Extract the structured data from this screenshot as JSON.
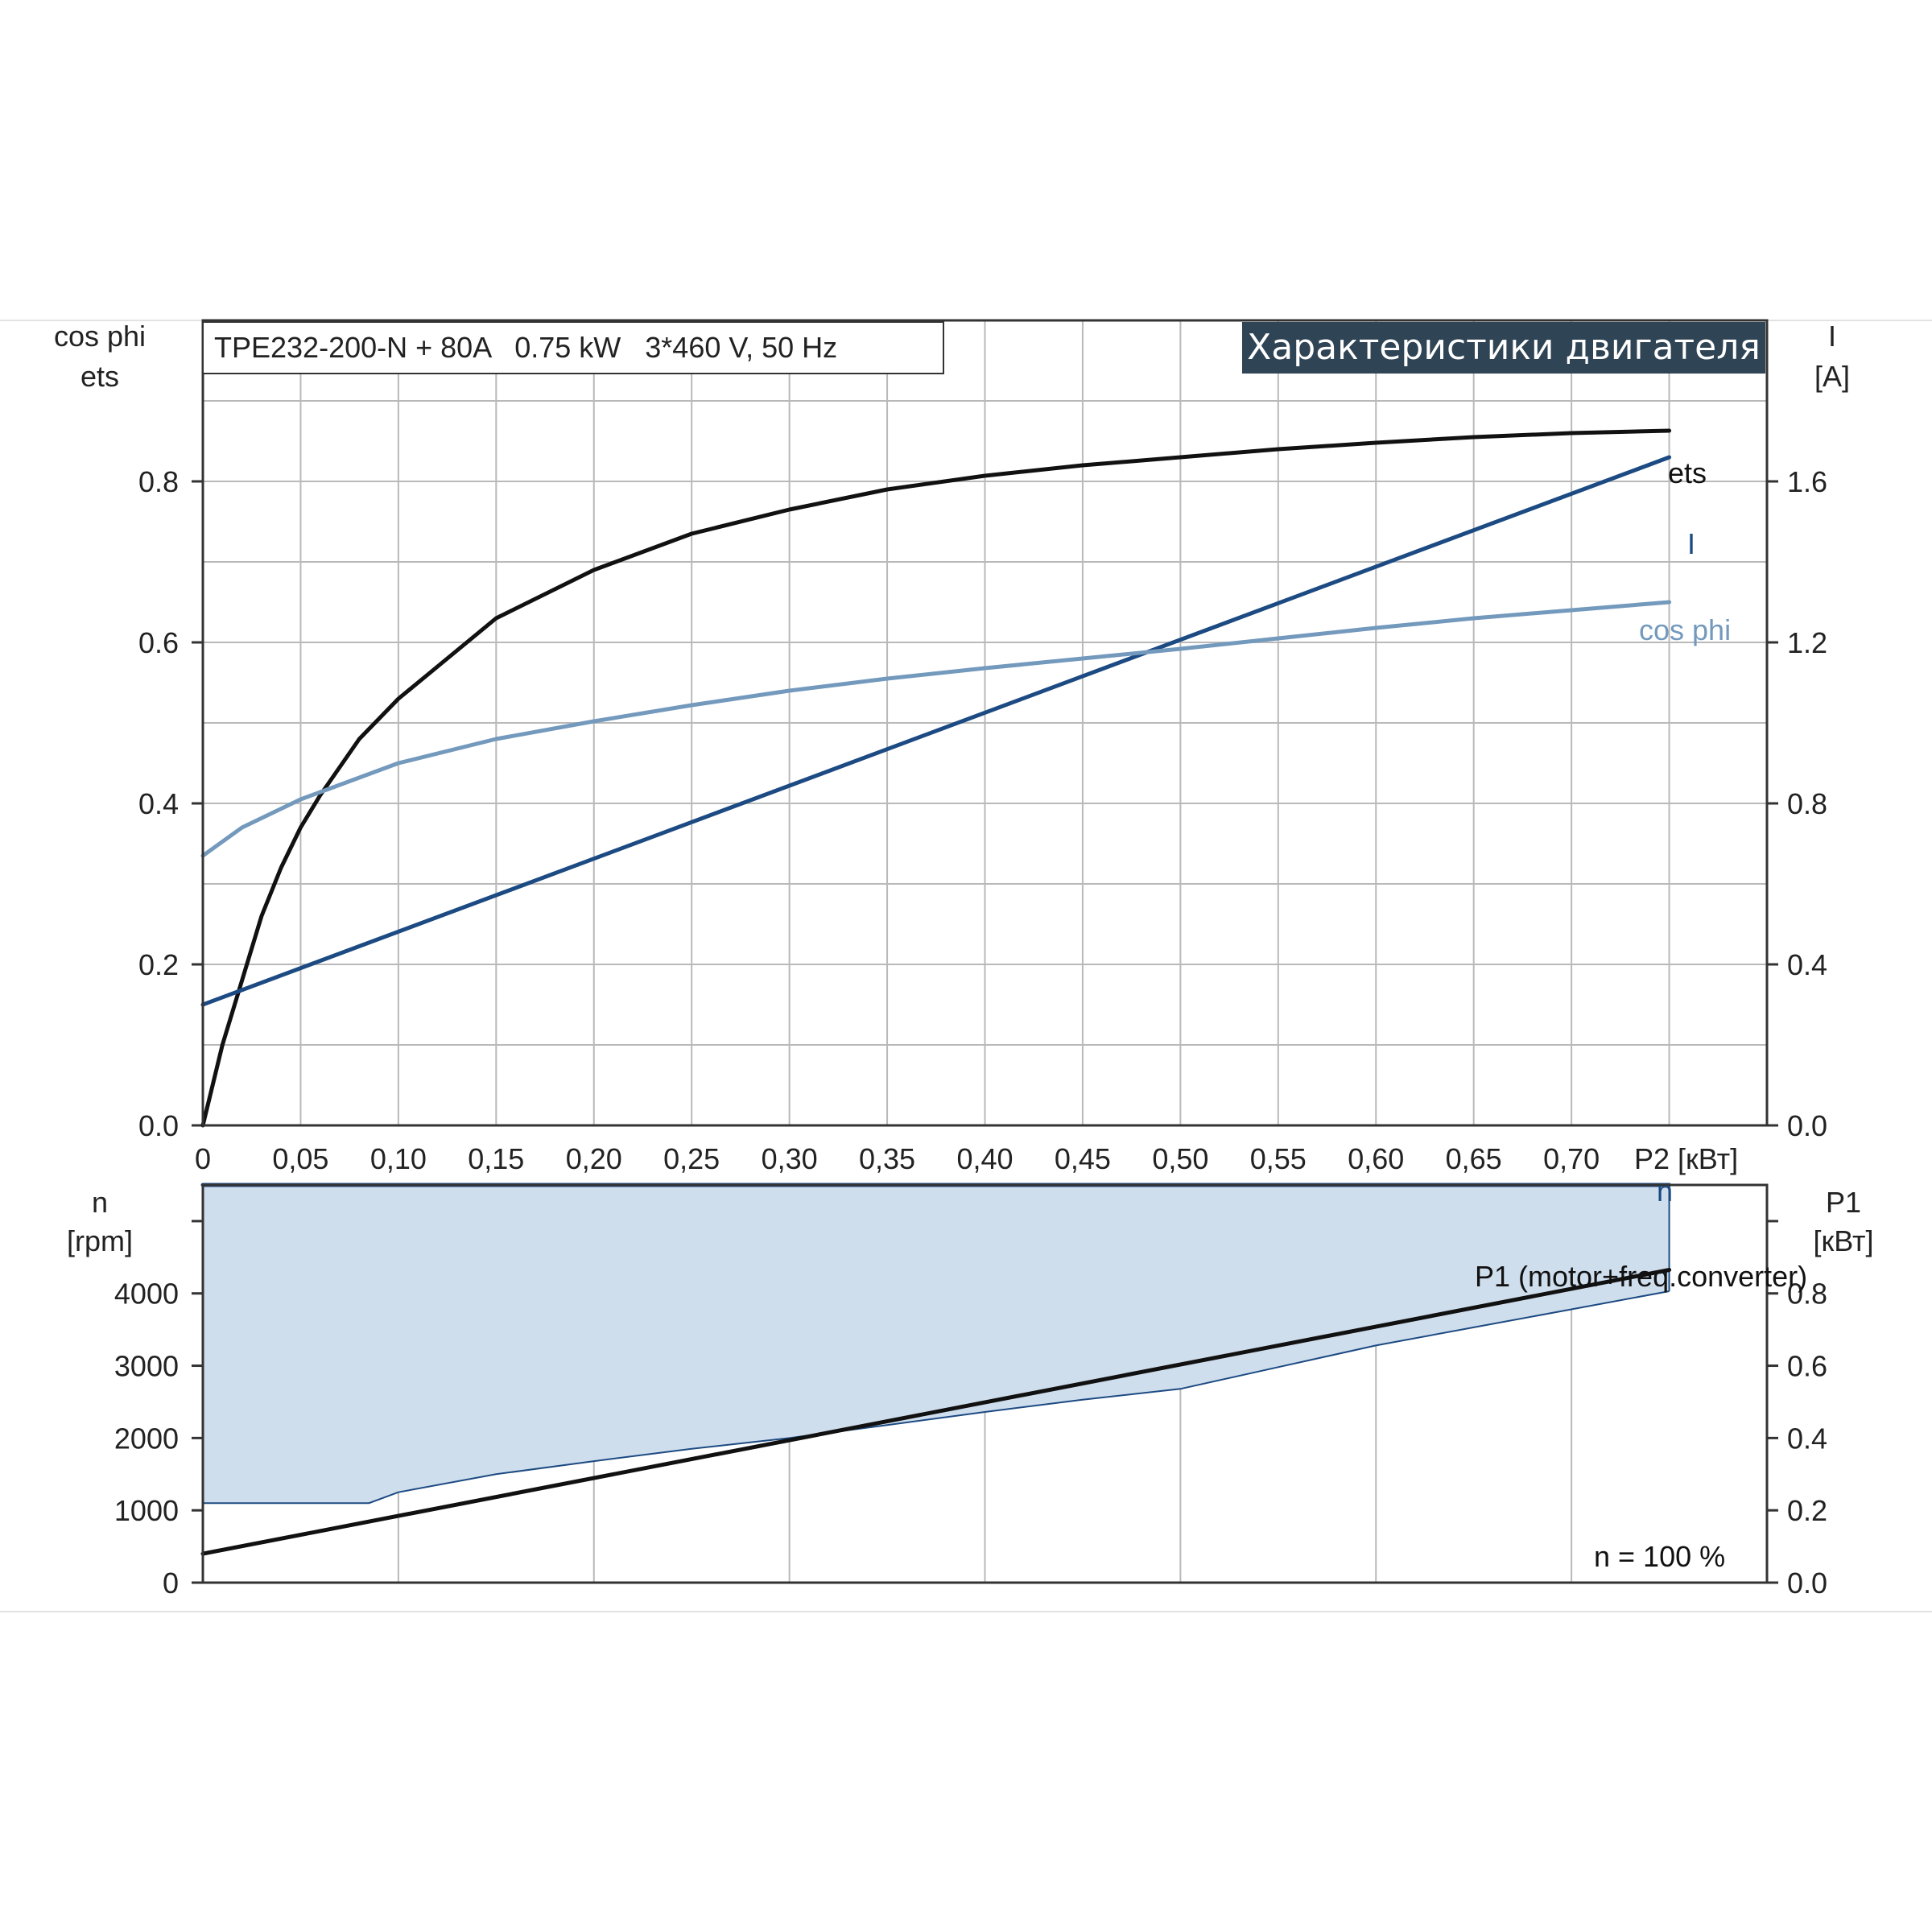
{
  "chart_data": [
    {
      "type": "line",
      "panel": "upper",
      "title": "TPE232-200-N + 80A   0.75 kW   3*460 V, 50 Hz",
      "badge": "Характеристики двигателя",
      "xlabel": "P2 [кВт]",
      "x_ticks": [
        "0",
        "0,05",
        "0,10",
        "0,15",
        "0,20",
        "0,25",
        "0,30",
        "0,35",
        "0,40",
        "0,45",
        "0,50",
        "0,55",
        "0,60",
        "0,65",
        "0,70"
      ],
      "xlim": [
        0,
        0.8
      ],
      "ylabel_left": [
        "cos phi",
        "ets"
      ],
      "ylim_left": [
        0,
        1.0
      ],
      "y_ticks_left": [
        "0.0",
        "0.2",
        "0.4",
        "0.6",
        "0.8"
      ],
      "ylabel_right": [
        "I",
        "[A]"
      ],
      "ylim_right": [
        0,
        2.0
      ],
      "y_ticks_right": [
        "0.0",
        "0.4",
        "0.8",
        "1.2",
        "1.6"
      ],
      "grid": true,
      "series": [
        {
          "name": "ets",
          "axis": "left",
          "color": "#111111",
          "x": [
            0,
            0.01,
            0.02,
            0.03,
            0.04,
            0.05,
            0.06,
            0.08,
            0.1,
            0.12,
            0.15,
            0.2,
            0.25,
            0.3,
            0.35,
            0.4,
            0.45,
            0.5,
            0.55,
            0.6,
            0.65,
            0.7,
            0.75
          ],
          "values": [
            0,
            0.1,
            0.18,
            0.26,
            0.32,
            0.37,
            0.41,
            0.48,
            0.53,
            0.57,
            0.63,
            0.69,
            0.735,
            0.765,
            0.79,
            0.807,
            0.82,
            0.83,
            0.84,
            0.848,
            0.855,
            0.86,
            0.863
          ]
        },
        {
          "name": "I",
          "axis": "right",
          "color": "#1c4a82",
          "x": [
            0,
            0.75
          ],
          "values": [
            0.3,
            1.66
          ]
        },
        {
          "name": "cos phi",
          "axis": "left",
          "color": "#7399bd",
          "x": [
            0,
            0.02,
            0.05,
            0.1,
            0.15,
            0.2,
            0.25,
            0.3,
            0.35,
            0.4,
            0.45,
            0.5,
            0.55,
            0.6,
            0.65,
            0.7,
            0.75
          ],
          "values": [
            0.335,
            0.37,
            0.405,
            0.45,
            0.48,
            0.502,
            0.522,
            0.54,
            0.555,
            0.568,
            0.58,
            0.592,
            0.605,
            0.618,
            0.63,
            0.64,
            0.65
          ]
        }
      ]
    },
    {
      "type": "area",
      "panel": "lower",
      "xlim": [
        0,
        0.8
      ],
      "ylabel_left": [
        "n",
        "[rpm]"
      ],
      "ylim_left": [
        0,
        5500
      ],
      "y_ticks_left": [
        "0",
        "1000",
        "2000",
        "3000",
        "4000"
      ],
      "ylabel_right": [
        "P1",
        "[кВт]"
      ],
      "ylim_right": [
        0,
        1.1
      ],
      "y_ticks_right": [
        "0.0",
        "0.2",
        "0.4",
        "0.6",
        "0.8"
      ],
      "annotation": "n = 100 %",
      "band": {
        "fill": "#cfdeed",
        "edge": "#1c4a82",
        "x": [
          0,
          0.085,
          0.1,
          0.15,
          0.2,
          0.25,
          0.3,
          0.35,
          0.4,
          0.45,
          0.5,
          0.55,
          0.6,
          0.65,
          0.7,
          0.75
        ],
        "n_max": [
          5500,
          5500,
          5500,
          5500,
          5500,
          5500,
          5500,
          5500,
          5500,
          5500,
          5500,
          5500,
          5500,
          5500,
          5500,
          5500
        ],
        "n_min": [
          1100,
          1100,
          1250,
          1500,
          1680,
          1850,
          2000,
          2180,
          2360,
          2530,
          2680,
          2980,
          3280,
          3530,
          3780,
          4030
        ]
      },
      "series": [
        {
          "name": "n",
          "axis": "left",
          "color": "#1c4a82",
          "x": [
            0,
            0.75
          ],
          "values": [
            5500,
            5500
          ]
        },
        {
          "name": "P1 (motor+freq.converter)",
          "axis": "right",
          "color": "#111111",
          "x": [
            0,
            0.75
          ],
          "values": [
            0.08,
            0.865
          ]
        }
      ]
    }
  ]
}
